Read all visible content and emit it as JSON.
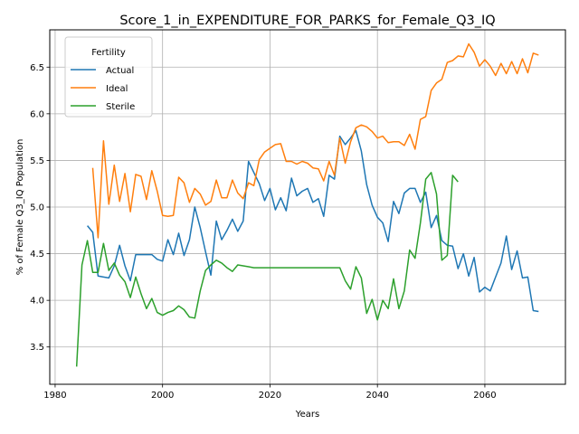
{
  "chart_data": {
    "type": "line",
    "title": "Score_1_in_EXPENDITURE_FOR_PARKS_for_Female_Q3_IQ",
    "xlabel": "Years",
    "ylabel": "% of Female Q3_IQ Population",
    "xlim": [
      1979,
      2075
    ],
    "ylim": [
      3.1,
      6.9
    ],
    "xticks": [
      1980,
      2000,
      2020,
      2040,
      2060
    ],
    "yticks": [
      3.5,
      4.0,
      4.5,
      5.0,
      5.5,
      6.0,
      6.5
    ],
    "ytick_labels": [
      "3.5",
      "4.0",
      "4.5",
      "5.0",
      "5.5",
      "6.0",
      "6.5"
    ],
    "grid": true,
    "legend": {
      "title": "Fertility",
      "position": "upper-left"
    },
    "series": [
      {
        "name": "Actual",
        "color": "#1f77b4",
        "x": [
          1986,
          1987,
          1988,
          1989,
          1990,
          1991,
          1992,
          1993,
          1994,
          1995,
          1996,
          1997,
          1998,
          1999,
          2000,
          2001,
          2002,
          2003,
          2004,
          2005,
          2006,
          2007,
          2008,
          2009,
          2010,
          2011,
          2012,
          2013,
          2014,
          2015,
          2016,
          2017,
          2018,
          2019,
          2020,
          2021,
          2022,
          2023,
          2024,
          2025,
          2026,
          2027,
          2028,
          2029,
          2030,
          2031,
          2032,
          2033,
          2034,
          2035,
          2036,
          2037,
          2038,
          2039,
          2040,
          2041,
          2042,
          2043,
          2044,
          2045,
          2046,
          2047,
          2048,
          2049,
          2050,
          2051,
          2052,
          2053,
          2054,
          2055,
          2056,
          2057,
          2058,
          2059,
          2060,
          2061,
          2062,
          2063,
          2064,
          2065,
          2066,
          2067,
          2068,
          2069,
          2070
        ],
        "y": [
          4.8,
          4.73,
          4.26,
          4.25,
          4.24,
          4.37,
          4.59,
          4.37,
          4.21,
          4.49,
          4.49,
          4.49,
          4.49,
          4.44,
          4.42,
          4.65,
          4.49,
          4.72,
          4.48,
          4.65,
          5.0,
          4.78,
          4.52,
          4.27,
          4.85,
          4.65,
          4.75,
          4.87,
          4.74,
          4.85,
          5.49,
          5.37,
          5.25,
          5.07,
          5.2,
          4.97,
          5.1,
          4.96,
          5.31,
          5.12,
          5.17,
          5.2,
          5.05,
          5.09,
          4.9,
          5.34,
          5.3,
          5.76,
          5.67,
          5.74,
          5.82,
          5.6,
          5.24,
          5.02,
          4.89,
          4.83,
          4.63,
          5.06,
          4.93,
          5.15,
          5.2,
          5.2,
          5.05,
          5.16,
          4.78,
          4.91,
          4.64,
          4.59,
          4.58,
          4.34,
          4.5,
          4.26,
          4.46,
          4.09,
          4.14,
          4.1,
          4.25,
          4.4,
          4.69,
          4.33,
          4.53,
          4.24,
          4.25,
          3.89,
          3.88
        ]
      },
      {
        "name": "Ideal",
        "color": "#ff7f0e",
        "x": [
          1987,
          1988,
          1989,
          1990,
          1991,
          1992,
          1993,
          1994,
          1995,
          1996,
          1997,
          1998,
          1999,
          2000,
          2001,
          2002,
          2003,
          2004,
          2005,
          2006,
          2007,
          2008,
          2009,
          2010,
          2011,
          2012,
          2013,
          2014,
          2015,
          2016,
          2017,
          2018,
          2019,
          2020,
          2021,
          2022,
          2023,
          2024,
          2025,
          2026,
          2027,
          2028,
          2029,
          2030,
          2031,
          2032,
          2033,
          2034,
          2035,
          2036,
          2037,
          2038,
          2039,
          2040,
          2041,
          2042,
          2043,
          2044,
          2045,
          2046,
          2047,
          2048,
          2049,
          2050,
          2051,
          2052,
          2053,
          2054,
          2055,
          2056,
          2057,
          2058,
          2059,
          2060,
          2061,
          2062,
          2063,
          2064,
          2065,
          2066,
          2067,
          2068,
          2069,
          2070
        ],
        "y": [
          5.42,
          4.67,
          5.71,
          5.03,
          5.45,
          5.06,
          5.36,
          4.95,
          5.35,
          5.33,
          5.08,
          5.39,
          5.17,
          4.91,
          4.9,
          4.91,
          5.32,
          5.26,
          5.05,
          5.2,
          5.14,
          5.02,
          5.06,
          5.29,
          5.1,
          5.1,
          5.29,
          5.15,
          5.09,
          5.26,
          5.23,
          5.51,
          5.59,
          5.63,
          5.67,
          5.68,
          5.49,
          5.49,
          5.46,
          5.49,
          5.47,
          5.42,
          5.41,
          5.28,
          5.49,
          5.34,
          5.74,
          5.47,
          5.7,
          5.85,
          5.88,
          5.86,
          5.81,
          5.74,
          5.76,
          5.69,
          5.7,
          5.7,
          5.66,
          5.78,
          5.62,
          5.94,
          5.97,
          6.25,
          6.33,
          6.37,
          6.55,
          6.57,
          6.62,
          6.61,
          6.75,
          6.66,
          6.51,
          6.58,
          6.51,
          6.41,
          6.54,
          6.43,
          6.56,
          6.43,
          6.59,
          6.44,
          6.65,
          6.63
        ]
      },
      {
        "name": "Sterile",
        "color": "#2ca02c",
        "x": [
          1984,
          1985,
          1986,
          1987,
          1988,
          1989,
          1990,
          1991,
          1992,
          1993,
          1994,
          1995,
          1996,
          1997,
          1998,
          1999,
          2000,
          2001,
          2002,
          2003,
          2004,
          2005,
          2006,
          2007,
          2008,
          2009,
          2010,
          2011,
          2012,
          2013,
          2014,
          2015,
          2016,
          2017,
          2018,
          2019,
          2020,
          2021,
          2022,
          2023,
          2024,
          2025,
          2026,
          2027,
          2028,
          2029,
          2030,
          2031,
          2032,
          2033,
          2034,
          2035,
          2036,
          2037,
          2038,
          2039,
          2040,
          2041,
          2042,
          2043,
          2044,
          2045,
          2046,
          2047,
          2048,
          2049,
          2050,
          2051,
          2052,
          2053,
          2054,
          2055
        ],
        "y": [
          3.29,
          4.38,
          4.64,
          4.3,
          4.3,
          4.61,
          4.32,
          4.4,
          4.27,
          4.2,
          4.03,
          4.25,
          4.07,
          3.91,
          4.02,
          3.87,
          3.84,
          3.87,
          3.89,
          3.94,
          3.9,
          3.82,
          3.81,
          4.1,
          4.32,
          4.38,
          4.43,
          4.4,
          4.35,
          4.31,
          4.38,
          4.37,
          4.36,
          4.35,
          4.35,
          4.35,
          4.35,
          4.35,
          4.35,
          4.35,
          4.35,
          4.35,
          4.35,
          4.35,
          4.35,
          4.35,
          4.35,
          4.35,
          4.35,
          4.35,
          4.21,
          4.12,
          4.36,
          4.24,
          3.86,
          4.01,
          3.79,
          4.0,
          3.91,
          4.23,
          3.91,
          4.1,
          4.54,
          4.45,
          4.83,
          5.3,
          5.37,
          5.14,
          4.43,
          4.48,
          5.34,
          5.27
        ]
      }
    ]
  }
}
